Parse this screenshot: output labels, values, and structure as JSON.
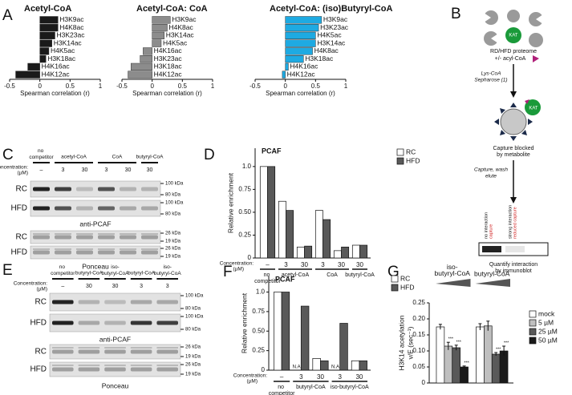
{
  "panel_labels": [
    "A",
    "B",
    "C",
    "D",
    "E",
    "F",
    "G"
  ],
  "chart_data": [
    {
      "type": "barh",
      "title": "Acetyl-CoA",
      "categories": [
        "H3K9ac",
        "H4K8ac",
        "H3K23ac",
        "H3K14ac",
        "H4K5ac",
        "H3K18ac",
        "H4K16ac",
        "H4K12ac"
      ],
      "values": [
        0.3,
        0.3,
        0.25,
        0.2,
        0.15,
        0.1,
        -0.2,
        -0.4
      ],
      "color": "#1a1a1a",
      "xlim": [
        -0.5,
        1
      ],
      "xticks": [
        -0.5,
        0,
        0.5,
        1
      ],
      "x_label": "Spearman correlation (r)"
    },
    {
      "type": "barh",
      "title": "Acetyl-CoA: CoA",
      "categories": [
        "H3K9ac",
        "H4K8ac",
        "H3K14ac",
        "H4K5ac",
        "H4K16ac",
        "H3K23ac",
        "H3K18ac",
        "H4K12ac"
      ],
      "values": [
        0.3,
        0.25,
        0.2,
        0.15,
        -0.15,
        -0.2,
        -0.35,
        -0.4
      ],
      "color": "#8c8c8c",
      "xlim": [
        -0.5,
        1
      ],
      "xticks": [
        -0.5,
        0,
        0.5,
        1
      ],
      "x_label": "Spearman correlation (r)"
    },
    {
      "type": "barh",
      "title": "Acetyl-CoA: (iso)Butyryl-CoA",
      "categories": [
        "H3K9ac",
        "H3K23ac",
        "H4K5ac",
        "H3K14ac",
        "H4K8ac",
        "H3K18ac",
        "H4K16ac",
        "H4K12ac"
      ],
      "values": [
        0.6,
        0.55,
        0.5,
        0.5,
        0.45,
        0.3,
        0.05,
        -0.05
      ],
      "color": "#1eaae2",
      "xlim": [
        -0.5,
        1
      ],
      "xticks": [
        -0.5,
        0,
        0.5,
        1
      ],
      "x_label": "Spearman correlation (r)"
    },
    {
      "type": "bar",
      "title": "PCAF",
      "y_label": [
        "Relative enrichment"
      ],
      "concentration_label": "Concentration:",
      "concentration_unit": "(µM)",
      "groups": [
        {
          "label": "no competitor",
          "categories": [
            "–"
          ]
        },
        {
          "label": "acetyl-CoA",
          "categories": [
            "3",
            "30"
          ]
        },
        {
          "label": "CoA",
          "categories": [
            "3",
            "30"
          ]
        },
        {
          "label": "butyryl-CoA",
          "categories": [
            "30"
          ]
        }
      ],
      "series": [
        {
          "name": "RC",
          "color": "#ffffff",
          "values": [
            1.0,
            0.62,
            0.12,
            0.52,
            0.08,
            0.14
          ]
        },
        {
          "name": "HFD",
          "color": "#595959",
          "values": [
            1.0,
            0.52,
            0.13,
            0.42,
            0.12,
            0.14
          ]
        }
      ],
      "ylim": [
        0,
        1.2
      ],
      "yticks": [
        0,
        0.25,
        {
          "value": 0.5,
          "label": "0.50"
        },
        0.75,
        {
          "value": 1,
          "label": "1.0"
        }
      ]
    },
    {
      "type": "bar",
      "title": "PCAF",
      "y_label": [
        "Relative enrichment"
      ],
      "concentration_label": "Concentration:",
      "concentration_unit": "(µM)",
      "groups": [
        {
          "label": "no competitor",
          "categories": [
            "–"
          ]
        },
        {
          "label": "butyryl-CoA",
          "categories": [
            "3",
            "30"
          ]
        },
        {
          "label": "iso-butyryl-CoA",
          "categories": [
            "3",
            "30"
          ]
        }
      ],
      "series": [
        {
          "name": "RC",
          "color": "#ffffff",
          "values": [
            1.0,
            null,
            0.15,
            null,
            0.12
          ],
          "value_labels": [
            null,
            "N.A.",
            null,
            "N.A.",
            null
          ]
        },
        {
          "name": "HFD",
          "color": "#595959",
          "values": [
            1.0,
            0.82,
            0.12,
            0.6,
            0.12
          ]
        }
      ],
      "ylim": [
        0,
        1.2
      ],
      "yticks": [
        0,
        0.25,
        {
          "value": 0.5,
          "label": "0.50"
        },
        0.75,
        {
          "value": 1,
          "label": "1.0"
        }
      ]
    },
    {
      "type": "bar",
      "y_label": [
        "H3K14 acetylation",
        "v/E (sec⁻¹)"
      ],
      "groups": [
        {
          "label": "iso-butyryl-CoA"
        },
        {
          "label": "butyryl-CoA"
        }
      ],
      "series": [
        {
          "name": "mock",
          "color": "#ffffff",
          "values": [
            0.175,
            0.175
          ],
          "errors": [
            0.008,
            0.01
          ],
          "significance": [
            null,
            null
          ]
        },
        {
          "name": "5 µM",
          "color": "#bfbfbf",
          "values": [
            0.115,
            0.178
          ],
          "errors": [
            0.012,
            0.015
          ],
          "significance": [
            "***",
            null
          ]
        },
        {
          "name": "25 µM",
          "color": "#595959",
          "values": [
            0.11,
            0.09
          ],
          "errors": [
            0.008,
            0.005
          ],
          "significance": [
            "***",
            "***"
          ]
        },
        {
          "name": "50 µM",
          "color": "#1a1a1a",
          "values": [
            0.05,
            0.1
          ],
          "errors": [
            0.003,
            0.015
          ],
          "significance": [
            "***",
            "***"
          ]
        }
      ],
      "ylim": [
        0,
        0.25
      ],
      "yticks": [
        0,
        0.05,
        {
          "value": 0.1,
          "label": "0.10"
        },
        0.15,
        {
          "value": 0.2,
          "label": "0.20"
        },
        0.25
      ]
    }
  ],
  "blot_c": {
    "concentration_label": "Concentration:",
    "concentration_unit": "(µM)",
    "groups": [
      {
        "label": "no competitor",
        "categories": [
          "–"
        ]
      },
      {
        "label": "acetyl-CoA",
        "categories": [
          "3",
          "30"
        ]
      },
      {
        "label": "CoA",
        "categories": [
          "3",
          "30"
        ]
      },
      {
        "label": "butyryl-CoA",
        "categories": [
          "30"
        ]
      }
    ],
    "blocks": [
      {
        "caption": "anti-PCAF",
        "rows": [
          {
            "label": "RC",
            "markers": [
              "100 kDa",
              "80 kDa"
            ]
          },
          {
            "label": "HFD",
            "markers": [
              "100 kDa",
              "80 kDa"
            ]
          }
        ]
      },
      {
        "caption": "Ponceau",
        "rows": [
          {
            "label": "RC",
            "markers": [
              "26 kDa",
              "19 kDa"
            ]
          },
          {
            "label": "HFD",
            "markers": [
              "26 kDa",
              "19 kDa"
            ]
          }
        ]
      }
    ]
  },
  "blot_e": {
    "concentration_label": "Concentration:",
    "concentration_unit": "(µM)",
    "groups": [
      {
        "label": "no competitor",
        "categories": [
          "–"
        ]
      },
      {
        "label": "butyryl-CoA",
        "categories": [
          "30"
        ]
      },
      {
        "label": "iso-butyryl-CoA",
        "categories": [
          "30"
        ]
      },
      {
        "label": "butyryl-CoA",
        "categories": [
          "3"
        ]
      },
      {
        "label": "iso-butyryl-CoA",
        "categories": [
          "3"
        ]
      }
    ],
    "blocks": [
      {
        "caption": "anti-PCAF",
        "rows": [
          {
            "label": "RC",
            "markers": [
              "100 kDa",
              "80 kDa"
            ]
          },
          {
            "label": "HFD",
            "markers": [
              "100 kDa",
              "80 kDa"
            ]
          }
        ]
      },
      {
        "caption": "Ponceau",
        "rows": [
          {
            "label": "RC",
            "markers": [
              "26 kDa",
              "19 kDa"
            ]
          },
          {
            "label": "HFD",
            "markers": [
              "26 kDa",
              "19 kDa"
            ]
          }
        ]
      }
    ]
  },
  "diagram_b": {
    "enzyme": "KAT",
    "proteome": "RD/HFD proteome",
    "acyl_coa": "+/- acyl-CoA",
    "resin": [
      "Lys-CoA",
      "Sepharose (1)"
    ],
    "bound_enzyme": "KAT",
    "blocked": [
      "Capture blocked",
      "by metabolite"
    ],
    "wash": [
      "Capture, wash",
      "elute"
    ],
    "lane_labels": [
      {
        "text": "no interaction",
        "result": "capture"
      },
      {
        "text": "strong interaction",
        "result": "reduced capture"
      }
    ],
    "readout": [
      "Quantify interaction",
      "by immunoblot"
    ]
  }
}
